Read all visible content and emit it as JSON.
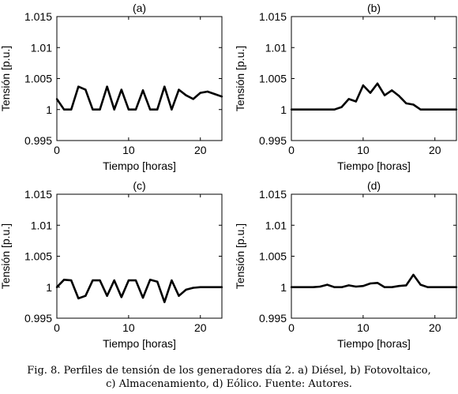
{
  "chart_data": [
    {
      "type": "line",
      "title": "(a)",
      "xlabel": "Tiempo [horas]",
      "ylabel": "Tensión [p.u.]",
      "xlim": [
        0,
        23
      ],
      "ylim": [
        0.995,
        1.015
      ],
      "xticks": [
        "0",
        "10",
        "20"
      ],
      "yticks": [
        "0.995",
        "1",
        "1.005",
        "1.01",
        "1.015"
      ],
      "grid": false,
      "x": [
        0,
        1,
        2,
        3,
        4,
        5,
        6,
        7,
        8,
        9,
        10,
        11,
        12,
        13,
        14,
        15,
        16,
        17,
        18,
        19,
        20,
        21,
        22,
        23
      ],
      "values": [
        1.0017,
        1.0,
        1.0,
        1.0037,
        1.0032,
        1.0,
        1.0,
        1.0037,
        1.0,
        1.0032,
        1.0,
        1.0,
        1.0031,
        1.0,
        1.0,
        1.0037,
        1.0,
        1.0032,
        1.0023,
        1.0017,
        1.0027,
        1.0029,
        1.0025,
        1.0021
      ]
    },
    {
      "type": "line",
      "title": "(b)",
      "xlabel": "Tiempo [horas]",
      "ylabel": "Tensión [p.u.]",
      "xlim": [
        0,
        23
      ],
      "ylim": [
        0.995,
        1.015
      ],
      "xticks": [
        "0",
        "10",
        "20"
      ],
      "yticks": [
        "0.995",
        "1",
        "1.005",
        "1.01",
        "1.015"
      ],
      "grid": false,
      "x": [
        0,
        1,
        2,
        3,
        4,
        5,
        6,
        7,
        8,
        9,
        10,
        11,
        12,
        13,
        14,
        15,
        16,
        17,
        18,
        19,
        20,
        21,
        22,
        23
      ],
      "values": [
        1.0,
        1.0,
        1.0,
        1.0,
        1.0,
        1.0,
        1.0,
        1.0004,
        1.0017,
        1.0013,
        1.0039,
        1.0027,
        1.0042,
        1.0023,
        1.0031,
        1.0022,
        1.001,
        1.0008,
        1.0,
        1.0,
        1.0,
        1.0,
        1.0,
        1.0
      ]
    },
    {
      "type": "line",
      "title": "(c)",
      "xlabel": "Tiempo [horas]",
      "ylabel": "Tensión [p.u.]",
      "xlim": [
        0,
        23
      ],
      "ylim": [
        0.995,
        1.015
      ],
      "xticks": [
        "0",
        "10",
        "20"
      ],
      "yticks": [
        "0.995",
        "1",
        "1.005",
        "1.01",
        "1.015"
      ],
      "grid": false,
      "x": [
        0,
        1,
        2,
        3,
        4,
        5,
        6,
        7,
        8,
        9,
        10,
        11,
        12,
        13,
        14,
        15,
        16,
        17,
        18,
        19,
        20,
        21,
        22,
        23
      ],
      "values": [
        1.0,
        1.0012,
        1.0011,
        0.9982,
        0.9986,
        1.0011,
        1.0011,
        0.9986,
        1.0011,
        0.9984,
        1.0011,
        1.0011,
        0.9983,
        1.0012,
        1.0009,
        0.9976,
        1.0011,
        0.9986,
        0.9996,
        0.9999,
        1.0,
        1.0,
        1.0,
        1.0
      ]
    },
    {
      "type": "line",
      "title": "(d)",
      "xlabel": "Tiempo [horas]",
      "ylabel": "Tensión [p.u.]",
      "xlim": [
        0,
        23
      ],
      "ylim": [
        0.995,
        1.015
      ],
      "xticks": [
        "0",
        "10",
        "20"
      ],
      "yticks": [
        "0.995",
        "1",
        "1.005",
        "1.01",
        "1.015"
      ],
      "grid": false,
      "x": [
        0,
        1,
        2,
        3,
        4,
        5,
        6,
        7,
        8,
        9,
        10,
        11,
        12,
        13,
        14,
        15,
        16,
        17,
        18,
        19,
        20,
        21,
        22,
        23
      ],
      "values": [
        1.0,
        1.0,
        1.0,
        1.0,
        1.0001,
        1.0004,
        1.0,
        1.0,
        1.0003,
        1.0001,
        1.0002,
        1.0006,
        1.0007,
        1.0,
        1.0,
        1.0002,
        1.0003,
        1.002,
        1.0004,
        1.0,
        1.0,
        1.0,
        1.0,
        1.0
      ]
    }
  ],
  "caption": {
    "line1": "Fig. 8. Perfiles de tensión de los generadores día 2. a) Diésel, b) Fotovoltaico,",
    "line2": "c) Almacenamiento, d) Eólico. Fuente: Autores."
  },
  "colors": {
    "line": "#000000",
    "axes": "#000000",
    "background": "#ffffff"
  }
}
